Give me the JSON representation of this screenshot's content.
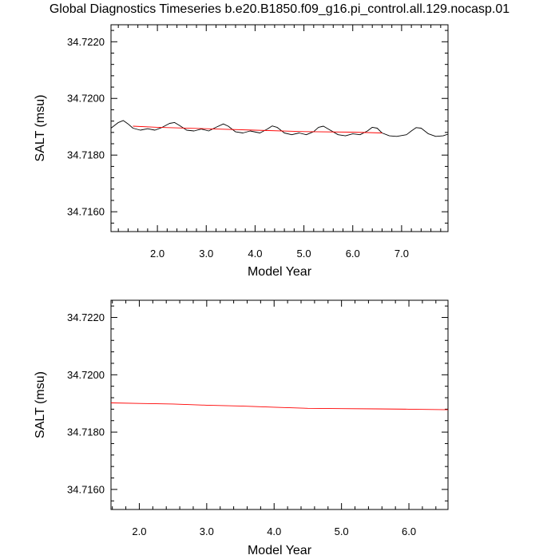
{
  "title": "Global Diagnostics Timeseries b.e20.B1850.f09_g16.pi_control.all.129.nocasp.01",
  "chart_data": [
    {
      "type": "line",
      "xlabel": "Model Year",
      "ylabel": "SALT (msu)",
      "xlim": [
        1.05,
        7.95
      ],
      "ylim": [
        34.7153,
        34.7226
      ],
      "x_ticks": [
        2.0,
        3.0,
        4.0,
        5.0,
        6.0,
        7.0
      ],
      "x_tick_labels": [
        "2.0",
        "3.0",
        "4.0",
        "5.0",
        "6.0",
        "7.0"
      ],
      "y_ticks": [
        34.716,
        34.718,
        34.72,
        34.722
      ],
      "y_tick_labels": [
        "34.7160",
        "34.7180",
        "34.7200",
        "34.7220"
      ],
      "grid": false,
      "series": [
        {
          "color": "#000000",
          "x": [
            1.05,
            1.2,
            1.3,
            1.4,
            1.5,
            1.65,
            1.8,
            1.95,
            2.1,
            2.25,
            2.35,
            2.45,
            2.6,
            2.75,
            2.9,
            3.05,
            3.2,
            3.35,
            3.45,
            3.6,
            3.75,
            3.9,
            4.1,
            4.25,
            4.35,
            4.45,
            4.6,
            4.75,
            4.9,
            5.05,
            5.2,
            5.3,
            5.4,
            5.5,
            5.7,
            5.85,
            6.0,
            6.15,
            6.3,
            6.4,
            6.5,
            6.6,
            6.75,
            6.9,
            7.1,
            7.2,
            7.3,
            7.4,
            7.55,
            7.7,
            7.85,
            7.95
          ],
          "y": [
            34.71895,
            34.71915,
            34.71922,
            34.7191,
            34.71895,
            34.71888,
            34.71893,
            34.71888,
            34.71898,
            34.71912,
            34.71915,
            34.71905,
            34.71888,
            34.71885,
            34.71892,
            34.71885,
            34.71898,
            34.7191,
            34.71902,
            34.71882,
            34.71878,
            34.71885,
            34.71878,
            34.71892,
            34.71903,
            34.71898,
            34.71878,
            34.71872,
            34.71878,
            34.71872,
            34.71883,
            34.71898,
            34.71902,
            34.71892,
            34.71872,
            34.71868,
            34.71875,
            34.71872,
            34.71885,
            34.71898,
            34.71895,
            34.71878,
            34.71868,
            34.71866,
            34.71872,
            34.71885,
            34.71897,
            34.71895,
            34.71875,
            34.71866,
            34.71868,
            34.71874
          ]
        },
        {
          "color": "#ff0000",
          "x": [
            1.5,
            2.0,
            3.0,
            4.0,
            5.0,
            6.0,
            6.6
          ],
          "y": [
            34.71902,
            34.71898,
            34.71893,
            34.71888,
            34.71883,
            34.71881,
            34.71878
          ]
        }
      ]
    },
    {
      "type": "line",
      "xlabel": "Model Year",
      "ylabel": "SALT (msu)",
      "xlim": [
        1.58,
        6.58
      ],
      "ylim": [
        34.7153,
        34.7226
      ],
      "x_ticks": [
        2.0,
        3.0,
        4.0,
        5.0,
        6.0
      ],
      "x_tick_labels": [
        "2.0",
        "3.0",
        "4.0",
        "5.0",
        "6.0"
      ],
      "y_ticks": [
        34.716,
        34.718,
        34.72,
        34.722
      ],
      "y_tick_labels": [
        "34.7160",
        "34.7180",
        "34.7200",
        "34.7220"
      ],
      "grid": false,
      "series": [
        {
          "color": "#ff0000",
          "x": [
            1.58,
            2.0,
            2.5,
            3.0,
            3.5,
            4.0,
            4.5,
            5.0,
            5.5,
            6.0,
            6.58
          ],
          "y": [
            34.71902,
            34.719,
            34.71898,
            34.71894,
            34.71891,
            34.71887,
            34.71883,
            34.71882,
            34.71881,
            34.7188,
            34.71878
          ]
        }
      ]
    }
  ]
}
